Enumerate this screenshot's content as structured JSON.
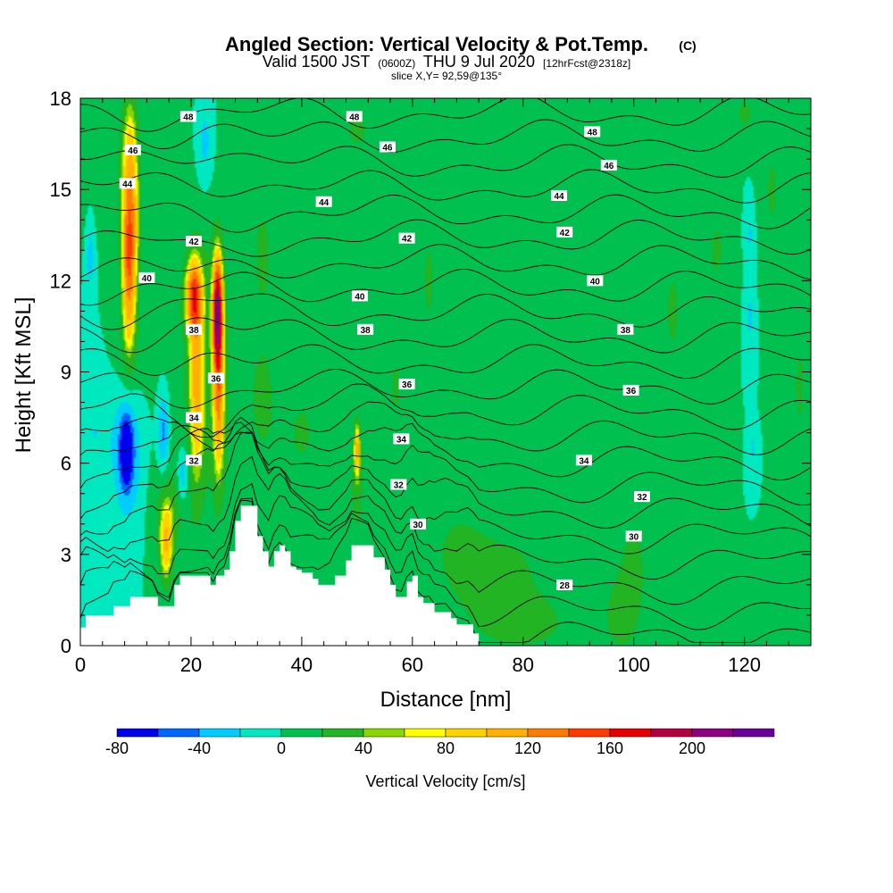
{
  "chart_data": {
    "type": "heatmap",
    "title": "Angled Section: Vertical Velocity & Pot.Temp.",
    "title_mark": "(C)",
    "subtitle_valid": "Valid 1500 JST",
    "subtitle_zulu": "(0600Z)",
    "subtitle_date": "THU 9 Jul 2020",
    "subtitle_fcst": "[12hrFcst@2318z]",
    "subtitle_slice": "slice X,Y= 92,59@135°",
    "xlabel": "Distance [nm]",
    "ylabel": "Height [Kft MSL]",
    "xlim": [
      0,
      132
    ],
    "ylim": [
      0,
      18
    ],
    "x_ticks": [
      0,
      20,
      40,
      60,
      80,
      100,
      120
    ],
    "x_tick_labels": [
      "0",
      "20",
      "40",
      "60",
      "80",
      "100",
      "120"
    ],
    "y_ticks": [
      0,
      3,
      6,
      9,
      12,
      15,
      18
    ],
    "y_tick_labels": [
      "0",
      "3",
      "6",
      "9",
      "12",
      "15",
      "18"
    ],
    "colorbar": {
      "label": "Vertical Velocity [cm/s]",
      "tick_values": [
        -80,
        -40,
        0,
        40,
        80,
        120,
        160,
        200
      ],
      "tick_labels": [
        "-80",
        "-40",
        "0",
        "40",
        "80",
        "120",
        "160",
        "200"
      ],
      "bin_edges": [
        -80,
        -60,
        -40,
        -20,
        0,
        20,
        40,
        50,
        60,
        80,
        100,
        120,
        140,
        160,
        180,
        200,
        220
      ],
      "colors": [
        "#0000ee",
        "#0066ff",
        "#00ccff",
        "#00e8c0",
        "#00c050",
        "#22b422",
        "#8ad600",
        "#ffff00",
        "#ffd200",
        "#ffb000",
        "#ff7a00",
        "#ff3a00",
        "#e60000",
        "#b40040",
        "#8c0080",
        "#6a0096"
      ]
    },
    "background_color": "#00e8c0",
    "terrain": [
      [
        0,
        0.6
      ],
      [
        1,
        1.0
      ],
      [
        5,
        1.0
      ],
      [
        6,
        1.3
      ],
      [
        8,
        1.3
      ],
      [
        9,
        1.6
      ],
      [
        13,
        1.6
      ],
      [
        14,
        1.3
      ],
      [
        16,
        1.3
      ],
      [
        17,
        2.0
      ],
      [
        18,
        2.3
      ],
      [
        23,
        2.3
      ],
      [
        23.5,
        2.0
      ],
      [
        24,
        2.0
      ],
      [
        24.5,
        2.3
      ],
      [
        26,
        2.5
      ],
      [
        27,
        3.1
      ],
      [
        28,
        4.1
      ],
      [
        29,
        4.6
      ],
      [
        31,
        4.6
      ],
      [
        32,
        3.6
      ],
      [
        33,
        3.1
      ],
      [
        34,
        2.6
      ],
      [
        34.5,
        2.6
      ],
      [
        35,
        3.1
      ],
      [
        36,
        3.3
      ],
      [
        37,
        3.1
      ],
      [
        38,
        2.6
      ],
      [
        39,
        2.5
      ],
      [
        40,
        2.4
      ],
      [
        42,
        2.2
      ],
      [
        43,
        2.0
      ],
      [
        45,
        2.0
      ],
      [
        46,
        2.3
      ],
      [
        48,
        2.8
      ],
      [
        49,
        3.3
      ],
      [
        52,
        3.3
      ],
      [
        53,
        2.9
      ],
      [
        55,
        2.5
      ],
      [
        56,
        2.0
      ],
      [
        57,
        1.6
      ],
      [
        58,
        1.6
      ],
      [
        59,
        2.1
      ],
      [
        60,
        2.3
      ],
      [
        61,
        1.6
      ],
      [
        62,
        1.4
      ],
      [
        63,
        1.4
      ],
      [
        64,
        1.1
      ],
      [
        66,
        1.1
      ],
      [
        67,
        0.9
      ],
      [
        68,
        0.7
      ],
      [
        70,
        0.7
      ],
      [
        71,
        0.4
      ],
      [
        72,
        0.0
      ]
    ],
    "vv_features": [
      {
        "x": 3,
        "y": 16.0,
        "wx": 5,
        "wy": 2.0,
        "v": 10
      },
      {
        "x": 9,
        "y": 14.5,
        "wx": 1.6,
        "wy": 3.5,
        "v": 95
      },
      {
        "x": 8.7,
        "y": 12.0,
        "wx": 1.2,
        "wy": 2.5,
        "v": 60
      },
      {
        "x": 9,
        "y": 9.5,
        "wx": 3.5,
        "wy": 1.6,
        "v": 12
      },
      {
        "x": 1.8,
        "y": 12.8,
        "wx": 0.7,
        "wy": 1.3,
        "v": -30
      },
      {
        "x": 2.5,
        "y": 7.0,
        "wx": 3.5,
        "wy": 2.0,
        "v": -20
      },
      {
        "x": 8.5,
        "y": 6.3,
        "wx": 2.5,
        "wy": 2.2,
        "v": -45
      },
      {
        "x": 8.3,
        "y": 6.4,
        "wx": 1.0,
        "wy": 1.0,
        "v": -80
      },
      {
        "x": 15,
        "y": 7.0,
        "wx": 1.0,
        "wy": 1.3,
        "v": -48
      },
      {
        "x": 18.5,
        "y": 5.6,
        "wx": 1.0,
        "wy": 0.9,
        "v": -45
      },
      {
        "x": 15.5,
        "y": 3.3,
        "wx": 1.2,
        "wy": 1.3,
        "v": 70
      },
      {
        "x": 16,
        "y": 4.5,
        "wx": 3.0,
        "wy": 1.5,
        "v": 25
      },
      {
        "x": 20.5,
        "y": 11.5,
        "wx": 1.5,
        "wy": 1.2,
        "v": 110
      },
      {
        "x": 21,
        "y": 8.5,
        "wx": 1.3,
        "wy": 3.0,
        "v": 70
      },
      {
        "x": 24.8,
        "y": 11.0,
        "wx": 0.9,
        "wy": 1.8,
        "v": 170
      },
      {
        "x": 25,
        "y": 8.0,
        "wx": 1.0,
        "wy": 2.5,
        "v": 80
      },
      {
        "x": 22.5,
        "y": 16.5,
        "wx": 1.5,
        "wy": 1.5,
        "v": -30
      },
      {
        "x": 23,
        "y": 9.0,
        "wx": 6,
        "wy": 6,
        "v": 25
      },
      {
        "x": 33,
        "y": 13.0,
        "wx": 2.5,
        "wy": 2.5,
        "v": 22
      },
      {
        "x": 33,
        "y": 8.0,
        "wx": 3.0,
        "wy": 2.5,
        "v": 22
      },
      {
        "x": 40,
        "y": 7.0,
        "wx": 4.0,
        "wy": 2.0,
        "v": 22
      },
      {
        "x": 50,
        "y": 17.0,
        "wx": 4.0,
        "wy": 1.5,
        "v": 22
      },
      {
        "x": 50,
        "y": 5.5,
        "wx": 1.2,
        "wy": 2.0,
        "v": 35
      },
      {
        "x": 50,
        "y": 6.5,
        "wx": 0.5,
        "wy": 0.8,
        "v": 65
      },
      {
        "x": 63,
        "y": 12.0,
        "wx": 2.0,
        "wy": 3.0,
        "v": 22
      },
      {
        "x": 57,
        "y": 8.5,
        "wx": 2.0,
        "wy": 2.0,
        "v": 22
      },
      {
        "x": 68,
        "y": 3.0,
        "wx": 6.0,
        "wy": 2.0,
        "v": 22
      },
      {
        "x": 78,
        "y": 2.5,
        "wx": 8.0,
        "wy": 1.8,
        "v": 22
      },
      {
        "x": 80,
        "y": 0.7,
        "wx": 10.0,
        "wy": 1.0,
        "v": 25
      },
      {
        "x": 100,
        "y": 2.5,
        "wx": 3.0,
        "wy": 2.5,
        "v": 25
      },
      {
        "x": 97,
        "y": 1.0,
        "wx": 3.0,
        "wy": 1.5,
        "v": 22
      },
      {
        "x": 107,
        "y": 11.0,
        "wx": 2.5,
        "wy": 3.0,
        "v": 22
      },
      {
        "x": 115,
        "y": 13.0,
        "wx": 2.5,
        "wy": 2.0,
        "v": 22
      },
      {
        "x": 121,
        "y": 10.8,
        "wx": 0.8,
        "wy": 1.0,
        "v": -25
      },
      {
        "x": 121,
        "y": 13.5,
        "wx": 0.8,
        "wy": 1.0,
        "v": -22
      },
      {
        "x": 121.5,
        "y": 6.5,
        "wx": 0.5,
        "wy": 0.5,
        "v": -25
      },
      {
        "x": 125,
        "y": 15.0,
        "wx": 2.0,
        "wy": 2.5,
        "v": 22
      },
      {
        "x": 120,
        "y": 17.5,
        "wx": 3.0,
        "wy": 1.0,
        "v": 22
      },
      {
        "x": 130,
        "y": 8.5,
        "wx": 1.5,
        "wy": 3.0,
        "v": 22
      }
    ],
    "theta_isentropes": [
      28,
      29,
      30,
      31,
      32,
      33,
      34,
      35,
      36,
      37,
      38,
      39,
      40,
      41,
      42,
      43,
      44,
      45,
      46,
      47,
      48,
      49
    ],
    "theta_labels": [
      {
        "value": "48",
        "x": 19.5,
        "y": 17.4
      },
      {
        "value": "48",
        "x": 49.5,
        "y": 17.4
      },
      {
        "value": "48",
        "x": 92.5,
        "y": 16.9
      },
      {
        "value": "46",
        "x": 9.5,
        "y": 16.3
      },
      {
        "value": "46",
        "x": 55.5,
        "y": 16.4
      },
      {
        "value": "46",
        "x": 95.5,
        "y": 15.8
      },
      {
        "value": "44",
        "x": 8.5,
        "y": 15.2
      },
      {
        "value": "44",
        "x": 44,
        "y": 14.6
      },
      {
        "value": "44",
        "x": 86.5,
        "y": 14.8
      },
      {
        "value": "42",
        "x": 20.5,
        "y": 13.3
      },
      {
        "value": "42",
        "x": 59,
        "y": 13.4
      },
      {
        "value": "42",
        "x": 87.5,
        "y": 13.6
      },
      {
        "value": "40",
        "x": 12,
        "y": 12.1
      },
      {
        "value": "40",
        "x": 50.5,
        "y": 11.5
      },
      {
        "value": "40",
        "x": 93,
        "y": 12.0
      },
      {
        "value": "38",
        "x": 20.5,
        "y": 10.4
      },
      {
        "value": "38",
        "x": 51.5,
        "y": 10.4
      },
      {
        "value": "38",
        "x": 98.5,
        "y": 10.4
      },
      {
        "value": "36",
        "x": 24.5,
        "y": 8.8
      },
      {
        "value": "36",
        "x": 59,
        "y": 8.6
      },
      {
        "value": "36",
        "x": 99.5,
        "y": 8.4
      },
      {
        "value": "34",
        "x": 20.5,
        "y": 7.5
      },
      {
        "value": "34",
        "x": 58,
        "y": 6.8
      },
      {
        "value": "34",
        "x": 91,
        "y": 6.1
      },
      {
        "value": "32",
        "x": 20.5,
        "y": 6.1
      },
      {
        "value": "32",
        "x": 57.5,
        "y": 5.3
      },
      {
        "value": "32",
        "x": 101.5,
        "y": 4.9
      },
      {
        "value": "30",
        "x": 61,
        "y": 4.0
      },
      {
        "value": "30",
        "x": 100,
        "y": 3.6
      },
      {
        "value": "28",
        "x": 87.5,
        "y": 2.0
      }
    ]
  }
}
